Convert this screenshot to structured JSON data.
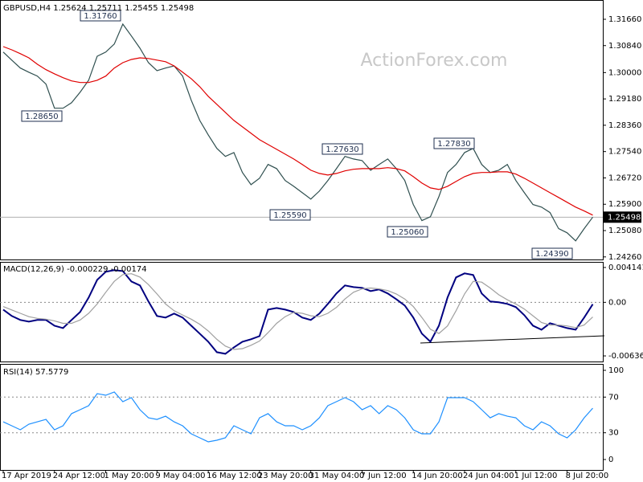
{
  "chart_data": [
    {
      "type": "line",
      "title": "GBPUSD,H4  1.25624 1.25711 1.25455 1.25498",
      "watermark": "ActionForex.com",
      "ylim": [
        1.2418,
        1.3221
      ],
      "yticks": [
        {
          "value": 1.3166,
          "label": "1.31660"
        },
        {
          "value": 1.3084,
          "label": "1.30840"
        },
        {
          "value": 1.3,
          "label": "1.30000"
        },
        {
          "value": 1.2918,
          "label": "1.29180"
        },
        {
          "value": 1.2836,
          "label": "1.28360"
        },
        {
          "value": 1.2754,
          "label": "1.27540"
        },
        {
          "value": 1.2672,
          "label": "1.26720"
        },
        {
          "value": 1.259,
          "label": "1.25900"
        },
        {
          "value": 1.2508,
          "label": "1.25080"
        },
        {
          "value": 1.2426,
          "label": "1.24260"
        }
      ],
      "last_price": 1.25498,
      "annotations": [
        {
          "value": 1.3176,
          "label": "1.31760"
        },
        {
          "value": 1.2865,
          "label": "1.28650"
        },
        {
          "value": 1.2763,
          "label": "1.27630"
        },
        {
          "value": 1.2559,
          "label": "1.25590"
        },
        {
          "value": 1.2506,
          "label": "1.25060"
        },
        {
          "value": 1.2783,
          "label": "1.27830"
        },
        {
          "value": 1.2439,
          "label": "1.24390"
        }
      ],
      "series": [
        {
          "color": "#2f4f4f",
          "values": [
            1.3064,
            1.3039,
            1.3014,
            1.3001,
            1.2989,
            1.2964,
            1.2889,
            1.2889,
            1.2906,
            1.2939,
            1.2976,
            1.3051,
            1.3064,
            1.3089,
            1.3151,
            1.3114,
            1.3076,
            1.3031,
            1.3006,
            1.3014,
            1.3021,
            1.2989,
            1.2914,
            1.2851,
            1.2806,
            1.2764,
            1.2739,
            1.2751,
            1.2689,
            1.2651,
            1.2671,
            1.2714,
            1.2701,
            1.2664,
            1.2646,
            1.2626,
            1.2606,
            1.2631,
            1.2664,
            1.2701,
            1.2739,
            1.2731,
            1.2726,
            1.2696,
            1.2714,
            1.2731,
            1.2701,
            1.2664,
            1.2589,
            1.2539,
            1.2551,
            1.2614,
            1.2689,
            1.2714,
            1.2751,
            1.2764,
            1.2714,
            1.2689,
            1.2696,
            1.2714,
            1.2664,
            1.2626,
            1.2589,
            1.2581,
            1.2564,
            1.2514,
            1.2501,
            1.2476,
            1.2514,
            1.25498
          ]
        },
        {
          "color": "#e00000",
          "values": [
            1.3081,
            1.3071,
            1.3059,
            1.3046,
            1.3026,
            1.3009,
            1.2996,
            1.2984,
            1.2974,
            1.2969,
            1.2969,
            1.2976,
            1.2989,
            1.3014,
            1.3031,
            1.3041,
            1.3046,
            1.3044,
            1.3039,
            1.3034,
            1.3021,
            1.3001,
            1.2981,
            1.2956,
            1.2926,
            1.2901,
            1.2876,
            1.2851,
            1.2831,
            1.2811,
            1.2791,
            1.2776,
            1.2761,
            1.2746,
            1.2731,
            1.2714,
            1.2696,
            1.2686,
            1.2681,
            1.2686,
            1.2694,
            1.2699,
            1.2701,
            1.2701,
            1.2701,
            1.2704,
            1.2701,
            1.2694,
            1.2676,
            1.2656,
            1.2641,
            1.2636,
            1.2646,
            1.2661,
            1.2676,
            1.2686,
            1.2689,
            1.2689,
            1.2691,
            1.2691,
            1.2684,
            1.2671,
            1.2656,
            1.2641,
            1.2626,
            1.2611,
            1.2596,
            1.2581,
            1.2569,
            1.2556
          ]
        }
      ]
    },
    {
      "type": "line",
      "title": "MACD(12,26,9) -0.000229 -0.00174",
      "ylim": [
        -0.00703,
        0.00471
      ],
      "yticks": [
        0.004141,
        {
          "value": 0,
          "label": "0.00"
        },
        -0.006365
      ],
      "levels": [
        0
      ],
      "series": [
        {
          "color": "#000080",
          "values": [
            -0.00086,
            -0.00162,
            -0.0021,
            -0.00229,
            -0.0021,
            -0.0021,
            -0.00277,
            -0.00306,
            -0.0021,
            -0.00115,
            0.00057,
            0.00267,
            0.00363,
            0.00382,
            0.00372,
            0.00248,
            0.00201,
            0.0001,
            -0.00162,
            -0.00181,
            -0.00134,
            -0.00181,
            -0.00277,
            -0.00372,
            -0.00468,
            -0.00592,
            -0.00611,
            -0.00535,
            -0.00468,
            -0.00439,
            -0.00401,
            -0.00086,
            -0.00067,
            -0.00086,
            -0.00115,
            -0.00181,
            -0.0021,
            -0.00134,
            -0.00019,
            0.00105,
            0.00201,
            0.00181,
            0.00172,
            0.00134,
            0.00153,
            0.00105,
            0.00038,
            -0.00038,
            -0.00181,
            -0.00372,
            -0.00468,
            -0.00277,
            0.00057,
            0.00296,
            0.00344,
            0.00325,
            0.00105,
            0.0001,
            0,
            -0.00019,
            -0.00057,
            -0.00153,
            -0.00277,
            -0.00325,
            -0.00248,
            -0.00277,
            -0.00306,
            -0.00325,
            -0.00181,
            -0.000229
          ]
        },
        {
          "color": "#a0a0a0",
          "values": [
            -0.0005,
            -0.0009,
            -0.0013,
            -0.0017,
            -0.0019,
            -0.002,
            -0.0022,
            -0.0025,
            -0.0025,
            -0.0021,
            -0.0013,
            -0.0002,
            0.0012,
            0.0025,
            0.0033,
            0.0034,
            0.003,
            0.0021,
            0.001,
            -0.0002,
            -0.001,
            -0.0015,
            -0.002,
            -0.0026,
            -0.0034,
            -0.0044,
            -0.0052,
            -0.0056,
            -0.0055,
            -0.0051,
            -0.0046,
            -0.0036,
            -0.0025,
            -0.0017,
            -0.0012,
            -0.0013,
            -0.0016,
            -0.0017,
            -0.0013,
            -0.0006,
            0.0004,
            0.0012,
            0.0016,
            0.0017,
            0.0016,
            0.0014,
            0.001,
            0.0004,
            -0.0005,
            -0.0018,
            -0.0032,
            -0.0037,
            -0.0028,
            -0.001,
            0.001,
            0.0025,
            0.0024,
            0.0017,
            0.0009,
            0.0003,
            -0.0002,
            -0.0008,
            -0.0016,
            -0.0024,
            -0.0027,
            -0.0027,
            -0.0028,
            -0.003,
            -0.0027,
            -0.00174
          ]
        }
      ]
    },
    {
      "type": "line",
      "title": "RSI(14) 57.5779",
      "ylim": [
        -11.7,
        105.4
      ],
      "yticks": [
        100,
        70,
        30,
        0
      ],
      "levels": [
        70,
        30
      ],
      "categories": [
        "17 Apr 2019",
        null,
        null,
        null,
        null,
        null,
        "24 Apr 12:00",
        null,
        null,
        null,
        null,
        null,
        "1 May 20:00",
        null,
        null,
        null,
        null,
        null,
        "9 May 04:00",
        null,
        null,
        null,
        null,
        null,
        "16 May 12:00",
        null,
        null,
        null,
        null,
        null,
        "23 May 20:00",
        null,
        null,
        null,
        null,
        null,
        "31 May 04:00",
        null,
        null,
        null,
        null,
        null,
        "7 Jun 12:00",
        null,
        null,
        null,
        null,
        null,
        "14 Jun 20:00",
        null,
        null,
        null,
        null,
        null,
        "24 Jun 04:00",
        null,
        null,
        null,
        null,
        null,
        "1 Jul 12:00",
        null,
        null,
        null,
        null,
        null,
        "8 Jul 20:00",
        null,
        null,
        null
      ],
      "series": [
        {
          "color": "#1e90ff",
          "values": [
            42.3,
            37.8,
            33.3,
            39.6,
            42.3,
            45.0,
            33.3,
            37.8,
            51.4,
            55.9,
            60.4,
            73.9,
            72.1,
            75.7,
            64.9,
            69.4,
            55.9,
            46.8,
            45.0,
            48.6,
            42.3,
            37.8,
            28.8,
            24.3,
            19.8,
            21.6,
            24.3,
            37.8,
            33.3,
            28.8,
            46.8,
            51.4,
            42.3,
            37.8,
            37.8,
            33.3,
            37.8,
            46.8,
            60.4,
            64.9,
            69.4,
            64.9,
            55.9,
            60.4,
            51.4,
            60.4,
            55.9,
            46.8,
            33.3,
            28.8,
            28.8,
            42.3,
            69.4,
            69.4,
            69.4,
            64.9,
            55.9,
            46.8,
            51.4,
            48.6,
            46.8,
            37.8,
            33.3,
            42.3,
            37.8,
            28.8,
            24.3,
            33.3,
            46.8,
            57.5779
          ]
        }
      ]
    }
  ]
}
